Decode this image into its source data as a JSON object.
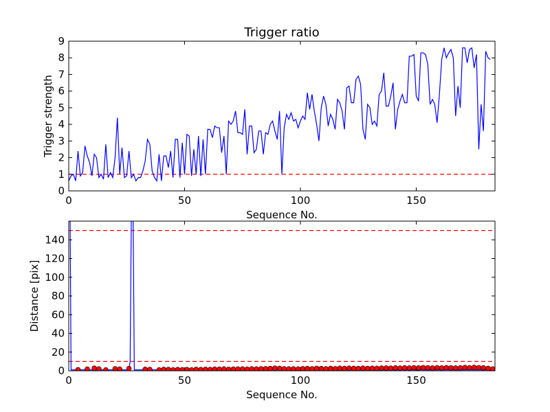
{
  "chart_data": [
    {
      "type": "line",
      "title": "Trigger ratio",
      "xlabel": "Sequence No.",
      "ylabel": "Trigger strength",
      "xlim": [
        0,
        184
      ],
      "ylim": [
        0,
        9
      ],
      "xticks": [
        "0",
        "50",
        "100",
        "150"
      ],
      "yticks": [
        "0",
        "1",
        "2",
        "3",
        "4",
        "5",
        "6",
        "7",
        "8",
        "9"
      ],
      "grid": false,
      "series_color": "#0000ff",
      "threshold_color": "#ff0000",
      "thresholds": [
        1.0
      ],
      "x_start": 0,
      "x_step": 1,
      "values": [
        0.6,
        0.9,
        1.0,
        0.6,
        2.4,
        0.9,
        1.1,
        2.7,
        2.1,
        1.7,
        0.9,
        2.2,
        2.0,
        0.8,
        1.0,
        0.7,
        2.8,
        0.8,
        1.1,
        0.8,
        2.0,
        4.4,
        1.0,
        2.6,
        0.8,
        0.9,
        2.4,
        0.8,
        1.0,
        0.6,
        0.8,
        0.8,
        1.2,
        1.8,
        3.1,
        2.8,
        1.2,
        0.8,
        0.6,
        2.2,
        0.6,
        2.1,
        2.1,
        1.4,
        2.4,
        0.8,
        3.1,
        3.1,
        0.8,
        2.9,
        1.0,
        3.4,
        3.3,
        0.9,
        2.5,
        1.0,
        3.3,
        0.9,
        3.1,
        1.0,
        3.7,
        3.7,
        3.2,
        3.9,
        3.8,
        3.8,
        2.3,
        3.3,
        1.0,
        4.2,
        4.0,
        4.2,
        4.8,
        3.5,
        3.5,
        3.4,
        4.9,
        2.2,
        3.9,
        3.9,
        2.3,
        2.5,
        3.6,
        3.6,
        2.2,
        3.5,
        3.4,
        4.0,
        4.2,
        3.6,
        3.1,
        4.8,
        1.0,
        3.8,
        4.6,
        4.3,
        4.7,
        4.2,
        4.3,
        3.8,
        4.2,
        4.5,
        4.3,
        5.9,
        4.9,
        5.8,
        4.8,
        4.0,
        3.0,
        5.0,
        5.7,
        5.2,
        3.9,
        4.6,
        4.3,
        3.7,
        5.5,
        5.3,
        4.8,
        3.7,
        6.2,
        6.3,
        5.3,
        5.3,
        6.7,
        6.9,
        6.4,
        3.7,
        3.1,
        5.2,
        5.0,
        4.0,
        4.2,
        3.9,
        5.8,
        6.0,
        7.1,
        5.1,
        5.1,
        5.7,
        6.5,
        3.7,
        4.9,
        5.4,
        5.8,
        5.3,
        5.3,
        8.1,
        8.1,
        8.2,
        5.7,
        5.4,
        8.3,
        8.3,
        8.2,
        7.6,
        5.2,
        5.5,
        5.2,
        4.1,
        5.8,
        7.9,
        8.6,
        8.0,
        8.3,
        8.5,
        8.0,
        4.5,
        6.3,
        5.0,
        8.6,
        8.6,
        7.7,
        8.5,
        8.6,
        7.4,
        8.2,
        2.5,
        5.2,
        3.6,
        8.4,
        8.0,
        7.9
      ]
    },
    {
      "type": "line",
      "title": "",
      "xlabel": "Sequence No.",
      "ylabel": "Distance [pix]",
      "xlim": [
        0,
        184
      ],
      "ylim": [
        0,
        160
      ],
      "xticks": [
        "0",
        "50",
        "100",
        "150"
      ],
      "yticks": [
        "0",
        "20",
        "40",
        "60",
        "80",
        "100",
        "120",
        "140"
      ],
      "grid": false,
      "series_color": "#0000ff",
      "marker_color": "#ff0000",
      "threshold_color": "#ff0000",
      "thresholds": [
        10,
        150
      ],
      "line_points": [
        [
          0,
          160
        ],
        [
          0.6,
          160
        ],
        [
          1,
          1
        ],
        [
          26,
          1
        ],
        [
          26.5,
          10
        ],
        [
          27,
          160
        ],
        [
          27.8,
          160
        ],
        [
          28.3,
          1
        ],
        [
          184,
          1
        ]
      ],
      "markers": [
        [
          4,
          1.2
        ],
        [
          8,
          1.8
        ],
        [
          11,
          2.8
        ],
        [
          13,
          2.0
        ],
        [
          16,
          1.0
        ],
        [
          20,
          2.2
        ],
        [
          22,
          1.8
        ],
        [
          26,
          2.4
        ],
        [
          33,
          1.6
        ],
        [
          35,
          1.4
        ],
        [
          39,
          1.0
        ],
        [
          41,
          1.5
        ],
        [
          43,
          1.4
        ],
        [
          45,
          1.1
        ],
        [
          47,
          1.3
        ],
        [
          49,
          1.2
        ],
        [
          51,
          1.3
        ],
        [
          53,
          1.1
        ],
        [
          55,
          1.5
        ],
        [
          57,
          1.3
        ],
        [
          59,
          1.6
        ],
        [
          61,
          1.4
        ],
        [
          63,
          1.8
        ],
        [
          65,
          1.7
        ],
        [
          67,
          2.0
        ],
        [
          69,
          1.6
        ],
        [
          71,
          1.8
        ],
        [
          73,
          1.9
        ],
        [
          75,
          2.0
        ],
        [
          77,
          1.8
        ],
        [
          79,
          2.1
        ],
        [
          81,
          2.0
        ],
        [
          83,
          2.2
        ],
        [
          85,
          2.3
        ],
        [
          87,
          2.5
        ],
        [
          89,
          2.8
        ],
        [
          91,
          2.6
        ],
        [
          93,
          2.2
        ],
        [
          95,
          2.0
        ],
        [
          97,
          2.1
        ],
        [
          99,
          1.9
        ],
        [
          101,
          2.3
        ],
        [
          103,
          2.4
        ],
        [
          105,
          2.2
        ],
        [
          107,
          2.6
        ],
        [
          109,
          2.4
        ],
        [
          111,
          2.2
        ],
        [
          113,
          2.5
        ],
        [
          115,
          2.3
        ],
        [
          117,
          2.7
        ],
        [
          119,
          2.5
        ],
        [
          121,
          2.8
        ],
        [
          123,
          2.6
        ],
        [
          125,
          2.4
        ],
        [
          127,
          2.8
        ],
        [
          129,
          2.5
        ],
        [
          131,
          2.7
        ],
        [
          133,
          2.6
        ],
        [
          135,
          2.9
        ],
        [
          137,
          3.0
        ],
        [
          139,
          2.8
        ],
        [
          141,
          3.1
        ],
        [
          143,
          2.9
        ],
        [
          145,
          3.2
        ],
        [
          147,
          3.0
        ],
        [
          149,
          3.3
        ],
        [
          151,
          3.1
        ],
        [
          153,
          3.4
        ],
        [
          155,
          3.2
        ],
        [
          157,
          3.0
        ],
        [
          159,
          3.3
        ],
        [
          161,
          3.1
        ],
        [
          163,
          3.4
        ],
        [
          165,
          3.2
        ],
        [
          167,
          3.0
        ],
        [
          169,
          3.2
        ],
        [
          171,
          3.5
        ],
        [
          173,
          3.3
        ],
        [
          175,
          3.6
        ],
        [
          177,
          3.4
        ],
        [
          179,
          3.2
        ],
        [
          181,
          2.6
        ],
        [
          183,
          2.0
        ]
      ]
    }
  ]
}
